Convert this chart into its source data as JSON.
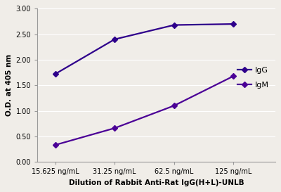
{
  "x_labels": [
    "15.625 ng/mL",
    "31.25 ng/mL",
    "62.5 ng/mL",
    "125 ng/mL"
  ],
  "x_positions": [
    0,
    1,
    2,
    3
  ],
  "IgG_values": [
    1.72,
    2.4,
    2.68,
    2.7
  ],
  "IgM_values": [
    0.33,
    0.66,
    1.1,
    1.68
  ],
  "IgG_color": "#2E008B",
  "IgM_color": "#4B0096",
  "marker": "D",
  "marker_size": 4,
  "ylabel": "O.D. at 405 nm",
  "xlabel": "Dilution of Rabbit Anti-Rat IgG(H+L)-UNLB",
  "ylim": [
    0.0,
    3.0
  ],
  "yticks": [
    0.0,
    0.5,
    1.0,
    1.5,
    2.0,
    2.5,
    3.0
  ],
  "legend_labels": [
    "IgG",
    "IgM"
  ],
  "title": "",
  "line_width": 1.6,
  "xlabel_fontsize": 7.5,
  "ylabel_fontsize": 7.5,
  "tick_fontsize": 7,
  "legend_fontsize": 8,
  "bg_color": "#f0ede8",
  "plot_bg_color": "#f0ede8",
  "grid_color": "#ffffff",
  "spine_color": "#999999"
}
